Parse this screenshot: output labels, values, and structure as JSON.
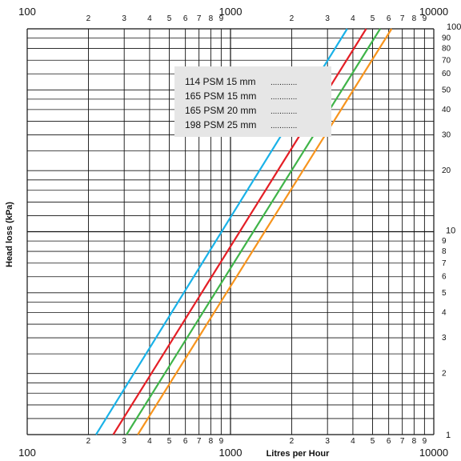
{
  "chart_data": {
    "type": "line",
    "x_scale": "log",
    "y_scale": "log",
    "xlim": [
      100,
      10000
    ],
    "ylim": [
      1,
      100
    ],
    "xlabel": "Litres per Hour",
    "ylabel": "Head loss (kPa)",
    "x_major_labels": [
      "100",
      "1000",
      "10000"
    ],
    "x_minor_labels": [
      "2",
      "3",
      "4",
      "5",
      "6",
      "7",
      "8",
      "9"
    ],
    "y_major_labels": [
      "1",
      "10",
      "100"
    ],
    "y_minor_labels": [
      "2",
      "3",
      "4",
      "5",
      "6",
      "7",
      "8",
      "9"
    ],
    "y_top_decade_minor_labels": [
      "20",
      "30",
      "40",
      "50",
      "60",
      "70",
      "80",
      "90"
    ],
    "grid": true,
    "legend": {
      "placement": "top-center",
      "background": "#e6e6e6",
      "leader": "............"
    },
    "series": [
      {
        "name": "114 PSM 15 mm",
        "color": "#1ab2e8",
        "x": [
          218,
          3750
        ],
        "y": [
          1,
          100
        ]
      },
      {
        "name": "165 PSM 15 mm",
        "color": "#e41f26",
        "x": [
          265,
          4650
        ],
        "y": [
          1,
          100
        ]
      },
      {
        "name": "165 PSM 20 mm",
        "color": "#3fb449",
        "x": [
          308,
          5450
        ],
        "y": [
          1,
          100
        ]
      },
      {
        "name": "198 PSM 25 mm",
        "color": "#f7941d",
        "x": [
          350,
          6200
        ],
        "y": [
          1,
          100
        ]
      }
    ]
  }
}
